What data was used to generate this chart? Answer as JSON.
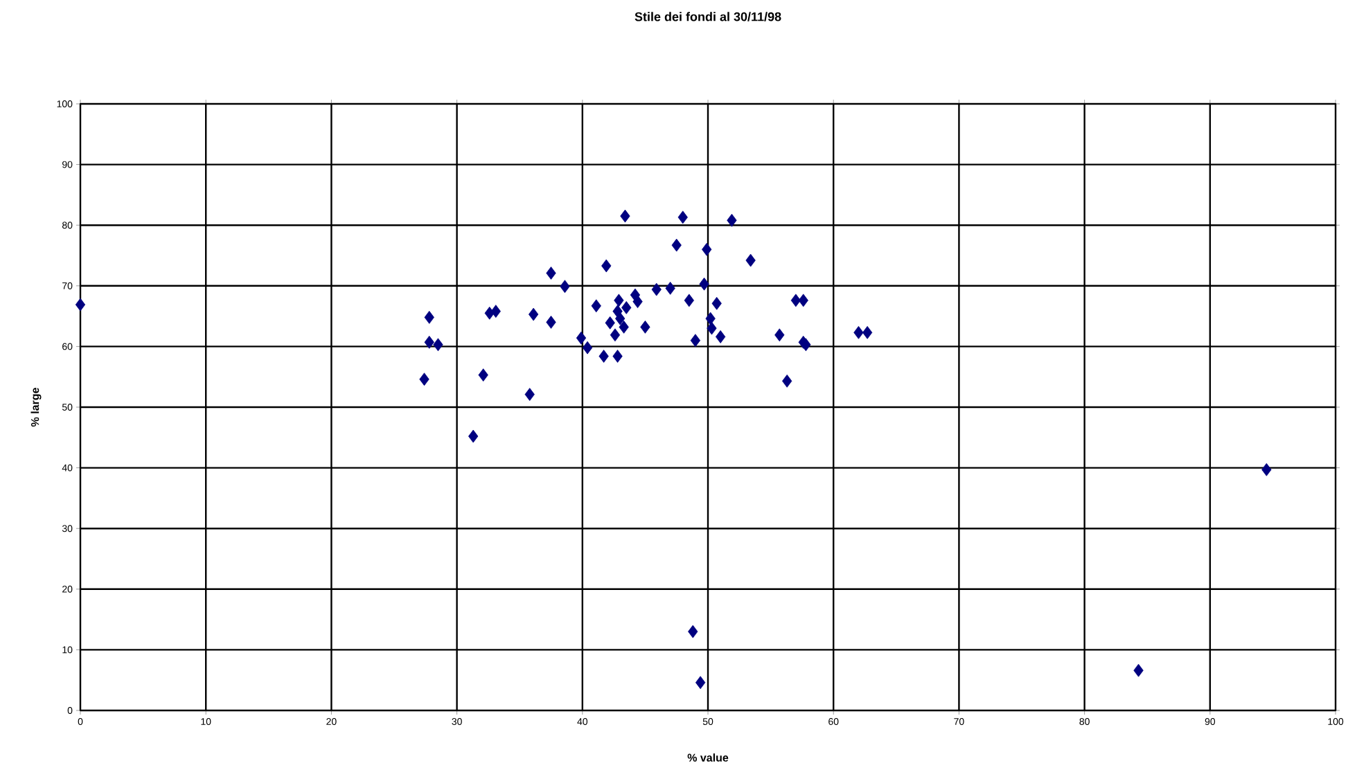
{
  "chart_data": {
    "type": "scatter",
    "title": "Stile dei fondi al 30/11/98",
    "xlabel": "% value",
    "ylabel": "% large",
    "x": [
      0,
      27.4,
      27.8,
      27.8,
      28.5,
      31.3,
      32.1,
      32.6,
      33.1,
      35.8,
      36.1,
      37.5,
      37.5,
      38.6,
      39.9,
      40.4,
      41.1,
      41.7,
      41.9,
      42.2,
      42.6,
      42.8,
      42.9,
      43.3,
      43.4,
      42.8,
      43.5,
      43.0,
      44.2,
      44.4,
      45.0,
      45.9,
      47.0,
      47.5,
      48.0,
      48.5,
      48.8,
      49.0,
      49.4,
      49.7,
      49.9,
      50.2,
      50.3,
      50.7,
      51.0,
      51.9,
      53.4,
      55.7,
      56.3,
      57.0,
      57.6,
      57.6,
      57.8,
      62.0,
      62.7,
      84.3,
      94.5
    ],
    "values": [
      66.9,
      54.6,
      64.8,
      60.7,
      60.3,
      45.2,
      55.3,
      65.5,
      65.8,
      52.1,
      65.3,
      64.0,
      72.1,
      69.9,
      61.4,
      59.8,
      66.7,
      58.4,
      73.3,
      63.9,
      61.9,
      58.4,
      67.6,
      63.2,
      81.5,
      65.8,
      66.4,
      64.6,
      68.5,
      67.4,
      63.2,
      69.4,
      69.6,
      76.7,
      81.3,
      67.6,
      13.0,
      61.0,
      4.6,
      70.3,
      76.0,
      64.6,
      63.0,
      67.1,
      61.6,
      80.8,
      74.2,
      61.9,
      54.3,
      67.6,
      67.6,
      60.7,
      60.3,
      62.3,
      62.3,
      6.6,
      39.7
    ],
    "color": "#000080",
    "marker": "diamond",
    "grid": true,
    "xlim": [
      0,
      100
    ],
    "xticks": [
      0,
      10,
      20,
      30,
      40,
      50,
      60,
      70,
      80,
      90,
      100
    ],
    "ylim": [
      0,
      100
    ],
    "yticks": [
      0,
      10,
      20,
      30,
      40,
      50,
      60,
      70,
      80,
      90,
      100
    ]
  }
}
